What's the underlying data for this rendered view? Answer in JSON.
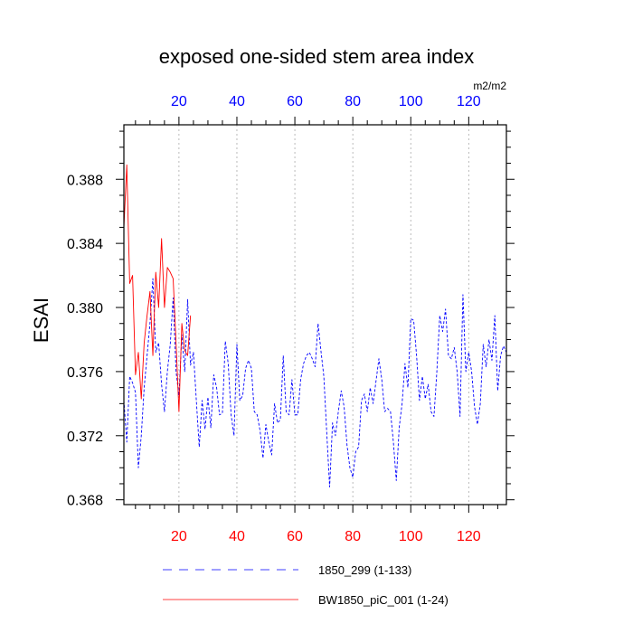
{
  "chart_data": {
    "type": "line",
    "title": "exposed one-sided stem area index",
    "ylabel": "ESAI",
    "units": "m2/m2",
    "xlim": [
      1,
      133
    ],
    "ylim": [
      0.3677,
      0.3914
    ],
    "x_ticks": [
      20,
      40,
      60,
      80,
      100,
      120
    ],
    "x_tick_labels": [
      "20",
      "40",
      "60",
      "80",
      "100",
      "120"
    ],
    "y_ticks": [
      0.368,
      0.372,
      0.376,
      0.38,
      0.384,
      0.388
    ],
    "y_tick_labels": [
      "0.368",
      "0.372",
      "0.376",
      "0.380",
      "0.384",
      "0.388"
    ],
    "grid": "vertical dotted at major x ticks",
    "colors": {
      "bottom_ticks": "#ff0000",
      "top_ticks": "#0000ff",
      "series_1": "#0000ff",
      "series_2": "#ff0000",
      "grid": "#aaaaaa",
      "axis": "#000000"
    },
    "series": [
      {
        "name": "1850_299 (1-133)",
        "style": "dashed",
        "x_start": 1,
        "values": [
          0.3742,
          0.3716,
          0.3757,
          0.3753,
          0.3747,
          0.37,
          0.372,
          0.375,
          0.377,
          0.379,
          0.3818,
          0.3772,
          0.3778,
          0.3752,
          0.3735,
          0.376,
          0.3777,
          0.3806,
          0.376,
          0.3745,
          0.3783,
          0.376,
          0.3805,
          0.3764,
          0.3772,
          0.3742,
          0.3713,
          0.3742,
          0.3724,
          0.3744,
          0.3725,
          0.3758,
          0.375,
          0.3733,
          0.3734,
          0.3779,
          0.3765,
          0.3733,
          0.372,
          0.3777,
          0.3742,
          0.3745,
          0.3762,
          0.3767,
          0.3762,
          0.3735,
          0.3733,
          0.3723,
          0.3706,
          0.3727,
          0.3716,
          0.3708,
          0.374,
          0.3728,
          0.373,
          0.377,
          0.3735,
          0.3733,
          0.3755,
          0.3733,
          0.3733,
          0.3755,
          0.3765,
          0.377,
          0.3772,
          0.3768,
          0.3763,
          0.379,
          0.3773,
          0.3757,
          0.3722,
          0.3688,
          0.3728,
          0.372,
          0.3735,
          0.3748,
          0.3738,
          0.3714,
          0.37,
          0.3694,
          0.371,
          0.3713,
          0.3742,
          0.3746,
          0.3735,
          0.375,
          0.374,
          0.3754,
          0.3768,
          0.3755,
          0.3735,
          0.3737,
          0.3735,
          0.3716,
          0.3692,
          0.3725,
          0.374,
          0.3765,
          0.375,
          0.3793,
          0.3792,
          0.377,
          0.3742,
          0.3757,
          0.3743,
          0.3752,
          0.3735,
          0.3732,
          0.376,
          0.3795,
          0.3785,
          0.3799,
          0.377,
          0.3768,
          0.3775,
          0.376,
          0.3732,
          0.3808,
          0.376,
          0.3772,
          0.376,
          0.3738,
          0.3727,
          0.374,
          0.3777,
          0.3763,
          0.378,
          0.3767,
          0.3795,
          0.3748,
          0.377,
          0.3776,
          0.3772
        ]
      },
      {
        "name": "BW1850_piC_001 (1-24)",
        "style": "solid",
        "x_start": 1,
        "values": [
          0.385,
          0.3889,
          0.3815,
          0.382,
          0.3758,
          0.3772,
          0.3743,
          0.3778,
          0.3795,
          0.381,
          0.377,
          0.3822,
          0.38,
          0.3843,
          0.38,
          0.3825,
          0.3822,
          0.3818,
          0.3778,
          0.3735,
          0.379,
          0.3773,
          0.377,
          0.3795
        ]
      }
    ],
    "legend": [
      {
        "label": "1850_299 (1-133)",
        "style": "dashed",
        "color": "#0000ff"
      },
      {
        "label": "BW1850_piC_001 (1-24)",
        "style": "solid",
        "color": "#ff0000"
      }
    ]
  }
}
